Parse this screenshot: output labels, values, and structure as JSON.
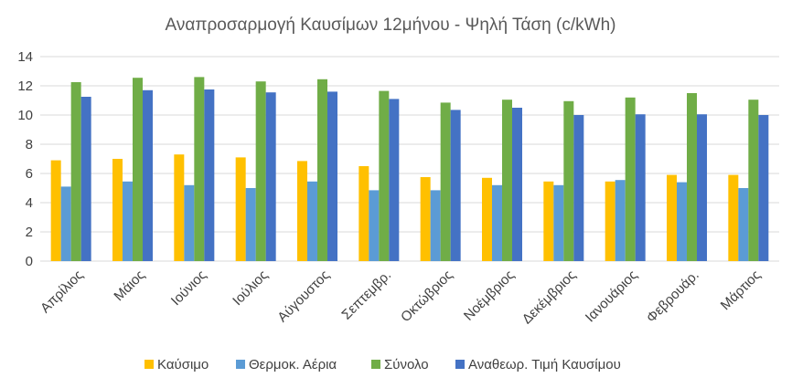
{
  "chart_data": {
    "type": "bar",
    "title": "Αναπροσαρμογή Καυσίμων 12μήνου - Ψηλή Τάση  (c/kWh)",
    "xlabel": "",
    "ylabel": "",
    "ylim": [
      0,
      14
    ],
    "yticks": [
      0,
      2,
      4,
      6,
      8,
      10,
      12,
      14
    ],
    "grid": true,
    "legend_position": "bottom",
    "categories": [
      "Απρίλιος",
      "Μάιος",
      "Ιούνιος",
      "Ιούλιος",
      "Αύγουστος",
      "Σεπτεμβρ.",
      "Οκτώβριος",
      "Νοέμβριος",
      "Δεκέμβριος",
      "Ιανουάριος",
      "Φεβρουάρ.",
      "Μάρτιος"
    ],
    "series": [
      {
        "name": "Καύσιμο",
        "color": "#FFC000",
        "values": [
          6.9,
          7.0,
          7.3,
          7.1,
          6.85,
          6.5,
          5.75,
          5.7,
          5.45,
          5.45,
          5.9,
          5.9
        ]
      },
      {
        "name": "Θερμοκ. Αέρια",
        "color": "#5B9BD5",
        "values": [
          5.1,
          5.45,
          5.2,
          5.0,
          5.45,
          4.85,
          4.85,
          5.2,
          5.2,
          5.55,
          5.4,
          5.0
        ]
      },
      {
        "name": "Σύνολο",
        "color": "#70AD47",
        "values": [
          12.25,
          12.55,
          12.6,
          12.3,
          12.45,
          11.65,
          10.85,
          11.05,
          10.95,
          11.2,
          11.5,
          11.05
        ]
      },
      {
        "name": "Αναθεωρ. Τιμή Καυσίμου",
        "color": "#4472C4",
        "values": [
          11.25,
          11.7,
          11.75,
          11.55,
          11.6,
          11.1,
          10.35,
          10.5,
          10.0,
          10.05,
          10.05,
          10.0
        ]
      }
    ]
  }
}
